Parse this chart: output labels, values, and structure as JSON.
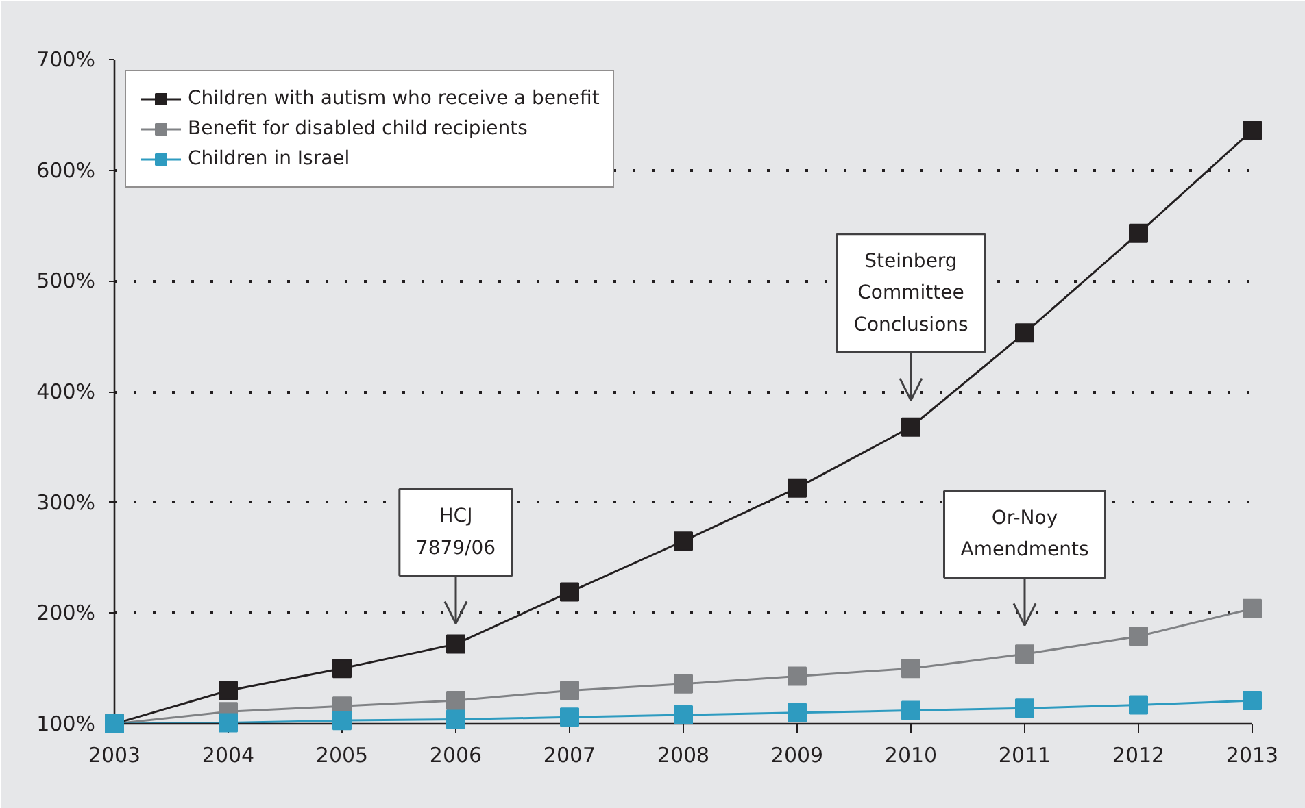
{
  "chart_data": {
    "type": "line",
    "x": [
      2003,
      2004,
      2005,
      2006,
      2007,
      2008,
      2009,
      2010,
      2011,
      2012,
      2013
    ],
    "series": [
      {
        "name": "Children with autism who receive a benefit",
        "color": "#231f20",
        "values": [
          100,
          130,
          150,
          172,
          219,
          265,
          313,
          368,
          453,
          543,
          636
        ]
      },
      {
        "name": "Benefit for disabled child recipients",
        "color": "#808285",
        "values": [
          100,
          111,
          116,
          121,
          130,
          136,
          143,
          150,
          163,
          179,
          204
        ]
      },
      {
        "name": "Children in Israel",
        "color": "#2e9bc0",
        "values": [
          100,
          101,
          103,
          104,
          106,
          108,
          110,
          112,
          114,
          117,
          121
        ]
      }
    ],
    "xlim": [
      2003,
      2013
    ],
    "xticks": [
      2003,
      2004,
      2005,
      2006,
      2007,
      2008,
      2009,
      2010,
      2011,
      2012,
      2013
    ],
    "ylim": [
      100,
      700
    ],
    "yticks": [
      {
        "value": 100,
        "label": "100%"
      },
      {
        "value": 200,
        "label": "200%"
      },
      {
        "value": 300,
        "label": "300%"
      },
      {
        "value": 400,
        "label": "400%"
      },
      {
        "value": 500,
        "label": "500%"
      },
      {
        "value": 600,
        "label": "600%"
      },
      {
        "value": 700,
        "label": "700%"
      }
    ],
    "grid": "y",
    "legend": "top left",
    "marker": "square",
    "line_style": "solid",
    "annotations": [
      "HCJ 7879/06",
      "Steinberg Committee Conclusions",
      "Or-Noy Amendments"
    ]
  }
}
